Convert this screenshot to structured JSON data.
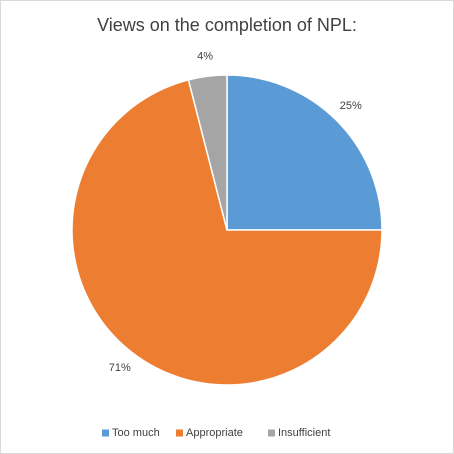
{
  "chart_data": {
    "type": "pie",
    "title": "Views on the completion of NPL:",
    "categories": [
      "Too much",
      "Appropriate",
      "Insufficient"
    ],
    "values": [
      25,
      71,
      4
    ],
    "value_labels": [
      "25%",
      "71%",
      "4%"
    ],
    "colors": [
      "#5b9bd5",
      "#ed7d31",
      "#a5a5a5"
    ],
    "legend": "bottom"
  }
}
